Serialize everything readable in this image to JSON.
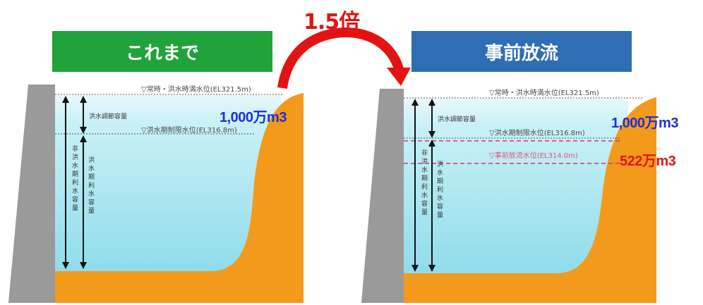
{
  "ratio_label": "1.5倍",
  "left": {
    "banner": "これまで",
    "banner_color": "#1fa33a",
    "top_level": "▽常時・洪水時満水位(EL321.5m)",
    "limit_level": "▽洪水期制限水位(EL316.8m)",
    "flood_control": "洪水調節容量",
    "utilization_a": "非洪水期利水容量",
    "utilization_b": "洪水期利水容量",
    "volume": "1,000万m3"
  },
  "right": {
    "banner": "事前放流",
    "banner_color": "#2f6db5",
    "top_level": "▽常時・洪水時満水位(EL321.5m)",
    "limit_level": "▽洪水期制限水位(EL316.8m)",
    "prerelease_level": "▽事前放流水位(EL314.0m)",
    "flood_control": "洪水調節容量",
    "utilization_a": "非洪水期利水容量",
    "utilization_b": "洪水期利水容量",
    "volume": "1,000万m3",
    "extra_volume": "522万m3"
  },
  "colors": {
    "dam": "#9a9a9a",
    "ground": "#f39a1c",
    "water_top": "#c8f0f6",
    "water_bottom": "#8ad9e8",
    "blue_text": "#1e2fd6",
    "red_text": "#e41313"
  }
}
